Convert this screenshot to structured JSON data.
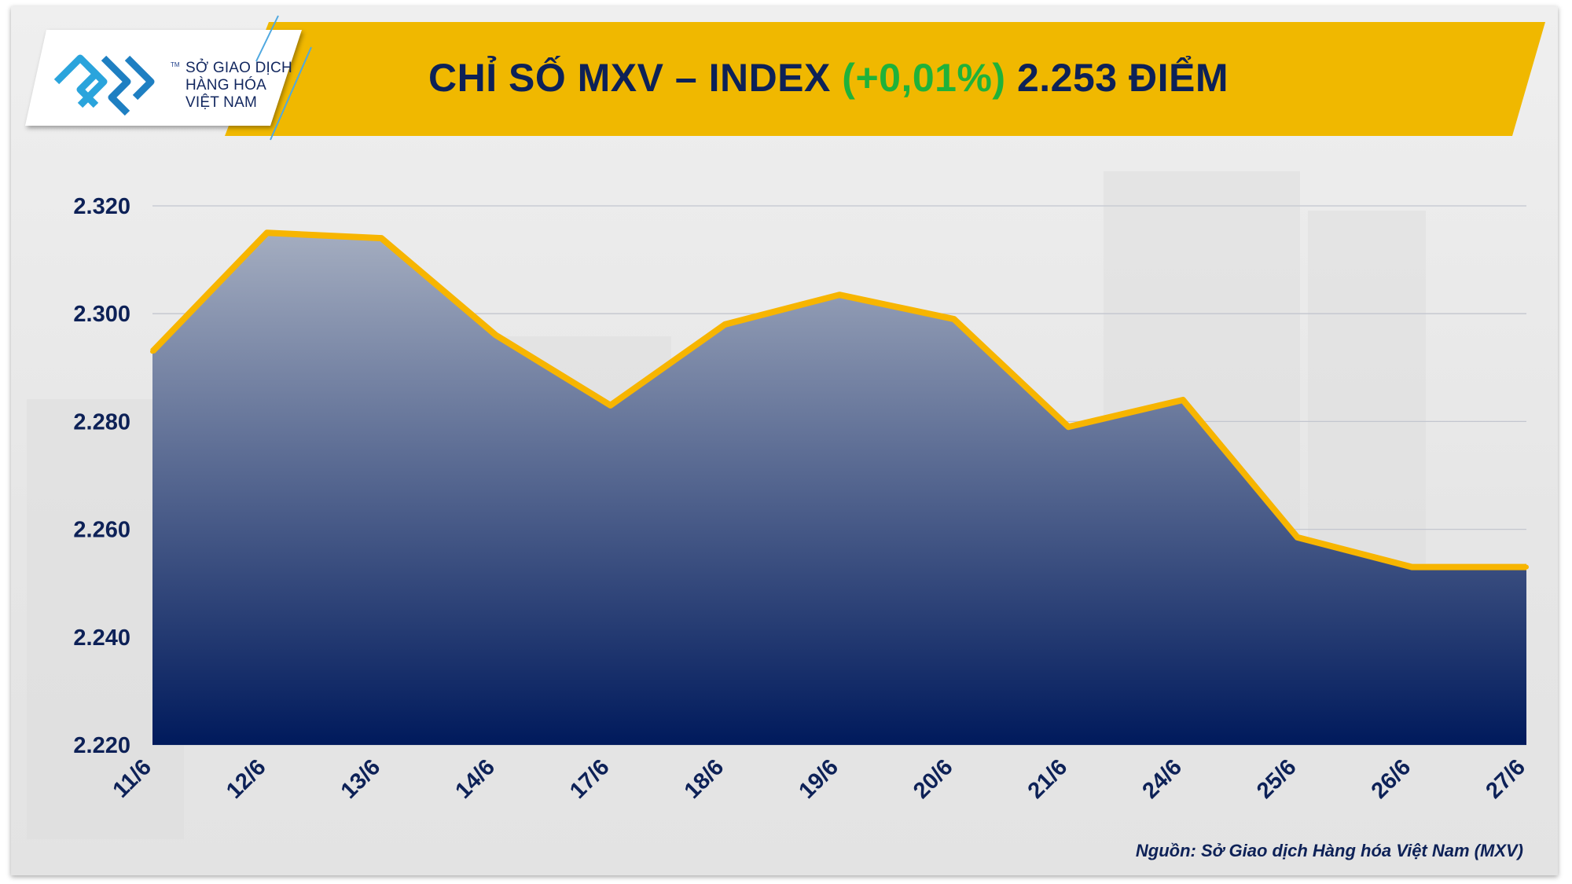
{
  "header": {
    "title_main": "CHỈ SỐ MXV – INDEX",
    "title_change": "(+0,01%)",
    "title_value": "2.253 ĐIỂM",
    "colors": {
      "bar": "#f0b800",
      "title": "#0d2157",
      "change": "#1fb23a"
    }
  },
  "logo": {
    "line1": "SỞ GIAO DỊCH",
    "line2": "HÀNG HÓA",
    "line3": "VIỆT NAM",
    "tm": "TM"
  },
  "source": "Nguồn: Sở Giao dịch Hàng hóa Việt Nam (MXV)",
  "chart_data": {
    "type": "area",
    "title": "CHỈ SỐ MXV – INDEX (+0,01%) 2.253 ĐIỂM",
    "categories": [
      "11/6",
      "12/6",
      "13/6",
      "14/6",
      "17/6",
      "18/6",
      "19/6",
      "20/6",
      "21/6",
      "24/6",
      "25/6",
      "26/6",
      "27/6"
    ],
    "values": [
      2293,
      2315,
      2314,
      2296,
      2283,
      2298,
      2303.5,
      2299,
      2279,
      2284,
      2258.5,
      2253,
      2253
    ],
    "ylim": [
      2220,
      2320
    ],
    "yticks": [
      2220,
      2240,
      2260,
      2280,
      2300,
      2320
    ],
    "ytick_labels": [
      "2.220",
      "2.240",
      "2.260",
      "2.280",
      "2.300",
      "2.320"
    ],
    "grid": true,
    "line_color": "#f7b500",
    "fill_top": "#a4adc0",
    "fill_bottom": "#001a5c"
  }
}
